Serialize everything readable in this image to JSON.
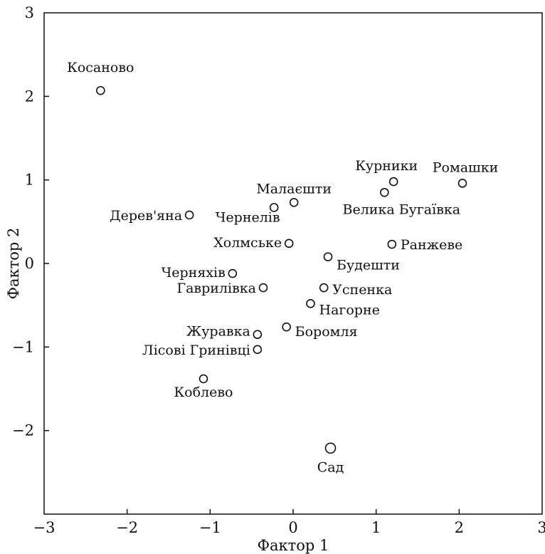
{
  "chart_data": {
    "type": "scatter",
    "title": "",
    "xlabel": "Фактор 1",
    "ylabel": "Фактор 2",
    "xlim": [
      -3,
      3
    ],
    "ylim": [
      -3,
      3
    ],
    "xticks": [
      "−3",
      "−2",
      "−1",
      "0",
      "1",
      "2",
      "3"
    ],
    "yticks": [
      "−2",
      "−1",
      "0",
      "1",
      "2",
      "3"
    ],
    "grid": false,
    "colors": {
      "marker": "#111111",
      "axis": "#111111"
    },
    "points": [
      {
        "label": "Косаново",
        "x": -2.32,
        "y": 2.07
      },
      {
        "label": "Курники",
        "x": 1.21,
        "y": 0.98
      },
      {
        "label": "Ромашки",
        "x": 2.04,
        "y": 0.96
      },
      {
        "label": "Велика Бугаївка",
        "x": 1.1,
        "y": 0.85
      },
      {
        "label": "Малаєшти",
        "x": 0.01,
        "y": 0.73
      },
      {
        "label": "Чернелів",
        "x": -0.23,
        "y": 0.67
      },
      {
        "label": "Дерев'яна",
        "x": -1.25,
        "y": 0.58
      },
      {
        "label": "Холмське",
        "x": -0.05,
        "y": 0.24
      },
      {
        "label": "Ранжеве",
        "x": 1.19,
        "y": 0.23
      },
      {
        "label": "Будешти",
        "x": 0.42,
        "y": 0.08
      },
      {
        "label": "Черняхів",
        "x": -0.73,
        "y": -0.12
      },
      {
        "label": "Гаврилівка",
        "x": -0.36,
        "y": -0.29
      },
      {
        "label": "Успенка",
        "x": 0.37,
        "y": -0.29
      },
      {
        "label": "Нагорне",
        "x": 0.21,
        "y": -0.48
      },
      {
        "label": "Боромля",
        "x": -0.08,
        "y": -0.76
      },
      {
        "label": "Журавка",
        "x": -0.43,
        "y": -0.85
      },
      {
        "label": "Лісові Гринівці",
        "x": -0.43,
        "y": -1.03
      },
      {
        "label": "Коблево",
        "x": -1.08,
        "y": -1.38
      },
      {
        "label": "Сад",
        "x": 0.45,
        "y": -2.21
      }
    ]
  }
}
